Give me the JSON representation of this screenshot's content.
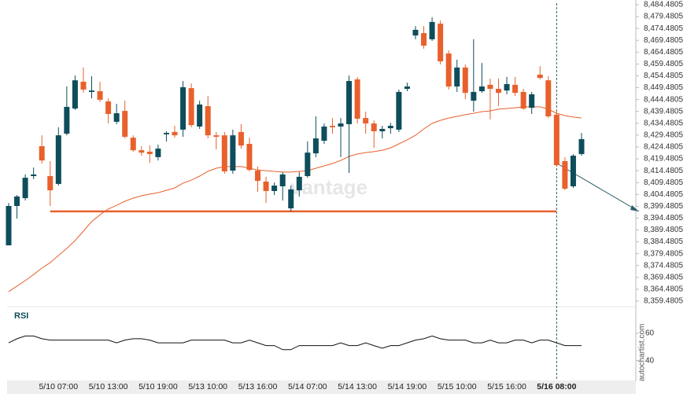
{
  "chart_data": {
    "type": "candlestick",
    "categories": [
      null,
      null,
      null,
      null,
      null,
      null,
      "5/10 07:00",
      null,
      null,
      null,
      null,
      null,
      "5/10 13:00",
      null,
      null,
      null,
      null,
      null,
      "5/10 19:00",
      null,
      null,
      null,
      null,
      null,
      "5/13 10:00",
      null,
      null,
      null,
      null,
      null,
      "5/13 16:00",
      null,
      null,
      null,
      null,
      null,
      "5/14 07:00",
      null,
      null,
      null,
      null,
      null,
      "5/14 13:00",
      null,
      null,
      null,
      null,
      null,
      "5/14 19:00",
      null,
      null,
      null,
      null,
      null,
      "5/15 10:00",
      null,
      null,
      null,
      null,
      null,
      "5/15 16:00",
      null,
      null,
      null,
      null,
      null,
      "5/16 08:00",
      null,
      null,
      null
    ],
    "open": [
      8383.0,
      8399.6,
      8402.9,
      8412.2,
      8424.8,
      8412.2,
      8408.9,
      8430.1,
      8440.7,
      8452.0,
      8447.7,
      8448.0,
      8443.7,
      8435.1,
      8439.7,
      8428.4,
      8423.1,
      8422.5,
      8420.2,
      8429.8,
      8430.8,
      8431.8,
      8449.3,
      8433.1,
      8441.7,
      8429.4,
      8429.4,
      8414.5,
      8430.8,
      8425.8,
      8414.5,
      8409.9,
      8405.9,
      8407.9,
      8398.6,
      8406.2,
      8412.2,
      8421.8,
      8427.1,
      8433.4,
      8433.1,
      8434.1,
      8453.0,
      8436.7,
      8434.4,
      8431.1,
      8432.4,
      8431.8,
      8449.0,
      8471.5,
      8472.5,
      8469.9,
      8476.5,
      8463.9,
      8450.0,
      8458.0,
      8444.0,
      8448.0,
      8450.7,
      8449.0,
      8448.3,
      8450.7,
      8447.7,
      8441.0,
      8455.0,
      8452.6,
      8438.1,
      8418.5,
      8407.9,
      8421.5
    ],
    "high": [
      8400.9,
      8404.2,
      8412.9,
      8415.8,
      8429.4,
      8418.5,
      8432.8,
      8450.0,
      8454.6,
      8458.0,
      8454.3,
      8452.0,
      8445.0,
      8442.7,
      8444.0,
      8429.4,
      8424.8,
      8425.1,
      8425.5,
      8431.1,
      8433.4,
      8452.3,
      8451.3,
      8444.0,
      8446.0,
      8430.8,
      8430.8,
      8431.8,
      8434.1,
      8428.4,
      8416.2,
      8411.9,
      8409.5,
      8413.9,
      8408.2,
      8413.9,
      8426.8,
      8437.4,
      8434.4,
      8436.7,
      8436.7,
      8454.6,
      8454.0,
      8439.4,
      8435.7,
      8433.4,
      8434.7,
      8448.7,
      8451.6,
      8475.5,
      8475.5,
      8479.2,
      8477.9,
      8465.2,
      8461.3,
      8459.3,
      8469.9,
      8459.9,
      8453.3,
      8453.3,
      8454.0,
      8454.0,
      8449.0,
      8447.7,
      8458.6,
      8454.3,
      8439.7,
      8420.2,
      8421.5,
      8430.4
    ],
    "low": [
      8383.0,
      8394.3,
      8401.9,
      8410.9,
      8417.5,
      8399.6,
      8408.2,
      8429.4,
      8440.1,
      8447.3,
      8445.0,
      8443.4,
      8434.4,
      8434.1,
      8428.1,
      8422.5,
      8420.8,
      8417.8,
      8418.8,
      8426.8,
      8428.4,
      8428.8,
      8432.8,
      8432.1,
      8428.1,
      8423.5,
      8413.2,
      8413.2,
      8423.8,
      8414.2,
      8405.6,
      8400.9,
      8404.2,
      8401.9,
      8397.3,
      8403.6,
      8411.5,
      8420.2,
      8425.8,
      8430.1,
      8420.2,
      8413.5,
      8434.4,
      8430.1,
      8424.1,
      8428.1,
      8430.1,
      8430.8,
      8448.0,
      8469.9,
      8465.9,
      8469.2,
      8459.3,
      8448.7,
      8447.7,
      8444.7,
      8439.4,
      8447.3,
      8436.1,
      8441.7,
      8446.7,
      8446.0,
      8440.1,
      8438.4,
      8453.0,
      8436.7,
      8416.2,
      8406.2,
      8407.2,
      8420.8
    ],
    "close": [
      8399.6,
      8403.6,
      8411.5,
      8412.9,
      8418.8,
      8406.2,
      8429.4,
      8441.4,
      8452.6,
      8448.7,
      8448.3,
      8444.4,
      8438.4,
      8438.7,
      8428.8,
      8423.1,
      8422.1,
      8421.5,
      8423.8,
      8430.4,
      8429.4,
      8449.7,
      8433.7,
      8442.4,
      8429.4,
      8428.8,
      8414.2,
      8429.4,
      8425.1,
      8414.8,
      8410.2,
      8405.9,
      8408.2,
      8412.9,
      8406.6,
      8411.9,
      8422.1,
      8428.1,
      8433.1,
      8432.8,
      8434.4,
      8452.3,
      8436.4,
      8434.4,
      8431.1,
      8432.1,
      8433.4,
      8447.7,
      8450.0,
      8473.9,
      8467.2,
      8477.2,
      8460.6,
      8450.0,
      8458.0,
      8447.3,
      8447.7,
      8450.0,
      8449.0,
      8447.3,
      8451.0,
      8447.3,
      8440.7,
      8446.7,
      8453.6,
      8437.4,
      8416.8,
      8406.9,
      8420.8,
      8427.8
    ],
    "up_color": "#0e4d5b",
    "down_color": "#e8602c",
    "ma": {
      "color": "#e8602c",
      "values": [
        8363.5,
        8365.8,
        8368.1,
        8370.7,
        8373.4,
        8375.7,
        8378.7,
        8381.7,
        8385.0,
        8389.0,
        8393.0,
        8395.9,
        8398.3,
        8399.9,
        8401.6,
        8402.9,
        8403.9,
        8404.6,
        8405.2,
        8406.2,
        8407.2,
        8409.2,
        8410.5,
        8412.2,
        8414.2,
        8415.5,
        8416.2,
        8416.2,
        8416.2,
        8415.5,
        8414.8,
        8414.5,
        8414.2,
        8413.9,
        8413.9,
        8414.2,
        8414.5,
        8415.5,
        8416.5,
        8417.5,
        8418.8,
        8420.5,
        8421.5,
        8422.1,
        8422.5,
        8423.1,
        8424.1,
        8425.8,
        8427.5,
        8429.4,
        8432.1,
        8434.4,
        8435.7,
        8436.7,
        8437.4,
        8438.1,
        8438.7,
        8439.4,
        8439.7,
        8440.4,
        8440.7,
        8441.0,
        8441.4,
        8441.4,
        8441.4,
        8440.4,
        8438.7,
        8437.7,
        8437.1,
        8436.7
      ]
    },
    "support_level": 8397.3,
    "support_color": "#e8602c",
    "ylim": [
      8359.4805,
      8484.4805
    ],
    "yticks": [
      {
        "value": 8484.4805,
        "label": "8,484.4805"
      },
      {
        "value": 8479.4805,
        "label": "8,479.4805"
      },
      {
        "value": 8474.4805,
        "label": "8,474.4805"
      },
      {
        "value": 8469.4805,
        "label": "8,469.4805"
      },
      {
        "value": 8464.4805,
        "label": "8,464.4805"
      },
      {
        "value": 8459.4805,
        "label": "8,459.4805"
      },
      {
        "value": 8454.4805,
        "label": "8,454.4805"
      },
      {
        "value": 8449.4805,
        "label": "8,449.4805"
      },
      {
        "value": 8444.4805,
        "label": "8,444.4805"
      },
      {
        "value": 8439.4805,
        "label": "8,439.4805"
      },
      {
        "value": 8434.4805,
        "label": "8,434.4805"
      },
      {
        "value": 8429.4805,
        "label": "8,429.4805"
      },
      {
        "value": 8424.4805,
        "label": "8,424.4805"
      },
      {
        "value": 8419.4805,
        "label": "8,419.4805"
      },
      {
        "value": 8414.4805,
        "label": "8,414.4805"
      },
      {
        "value": 8409.4805,
        "label": "8,409.4805"
      },
      {
        "value": 8404.4805,
        "label": "8,404.4805"
      },
      {
        "value": 8399.4805,
        "label": "8,399.4805"
      },
      {
        "value": 8394.4805,
        "label": "8,394.4805"
      },
      {
        "value": 8389.4805,
        "label": "8,389.4805"
      },
      {
        "value": 8384.4805,
        "label": "8,384.4805"
      },
      {
        "value": 8379.4805,
        "label": "8,379.4805"
      },
      {
        "value": 8374.4805,
        "label": "8,374.4805"
      },
      {
        "value": 8369.4805,
        "label": "8,369.4805"
      },
      {
        "value": 8364.4805,
        "label": "8,364.4805"
      },
      {
        "value": 8359.4805,
        "label": "8,359.4805"
      }
    ],
    "rsi": {
      "label": "RSI",
      "color": "#111",
      "ylim": [
        22,
        68
      ],
      "yticks": [
        60,
        40
      ],
      "values": [
        53,
        56,
        58,
        58,
        56,
        55,
        55,
        55,
        55,
        55,
        55,
        55,
        55,
        53,
        55,
        56,
        56,
        55,
        53,
        53,
        53,
        53,
        55,
        55,
        55,
        55,
        55,
        53,
        53,
        55,
        53,
        51,
        51,
        48,
        48,
        51,
        51,
        51,
        51,
        51,
        53,
        51,
        51,
        53,
        51,
        49,
        51,
        51,
        53,
        55,
        56,
        58,
        56,
        55,
        55,
        55,
        53,
        53,
        55,
        53,
        53,
        55,
        55,
        53,
        55,
        55,
        53,
        51,
        51,
        51
      ]
    },
    "watermark": "vantage",
    "source": "autochartist.com"
  }
}
